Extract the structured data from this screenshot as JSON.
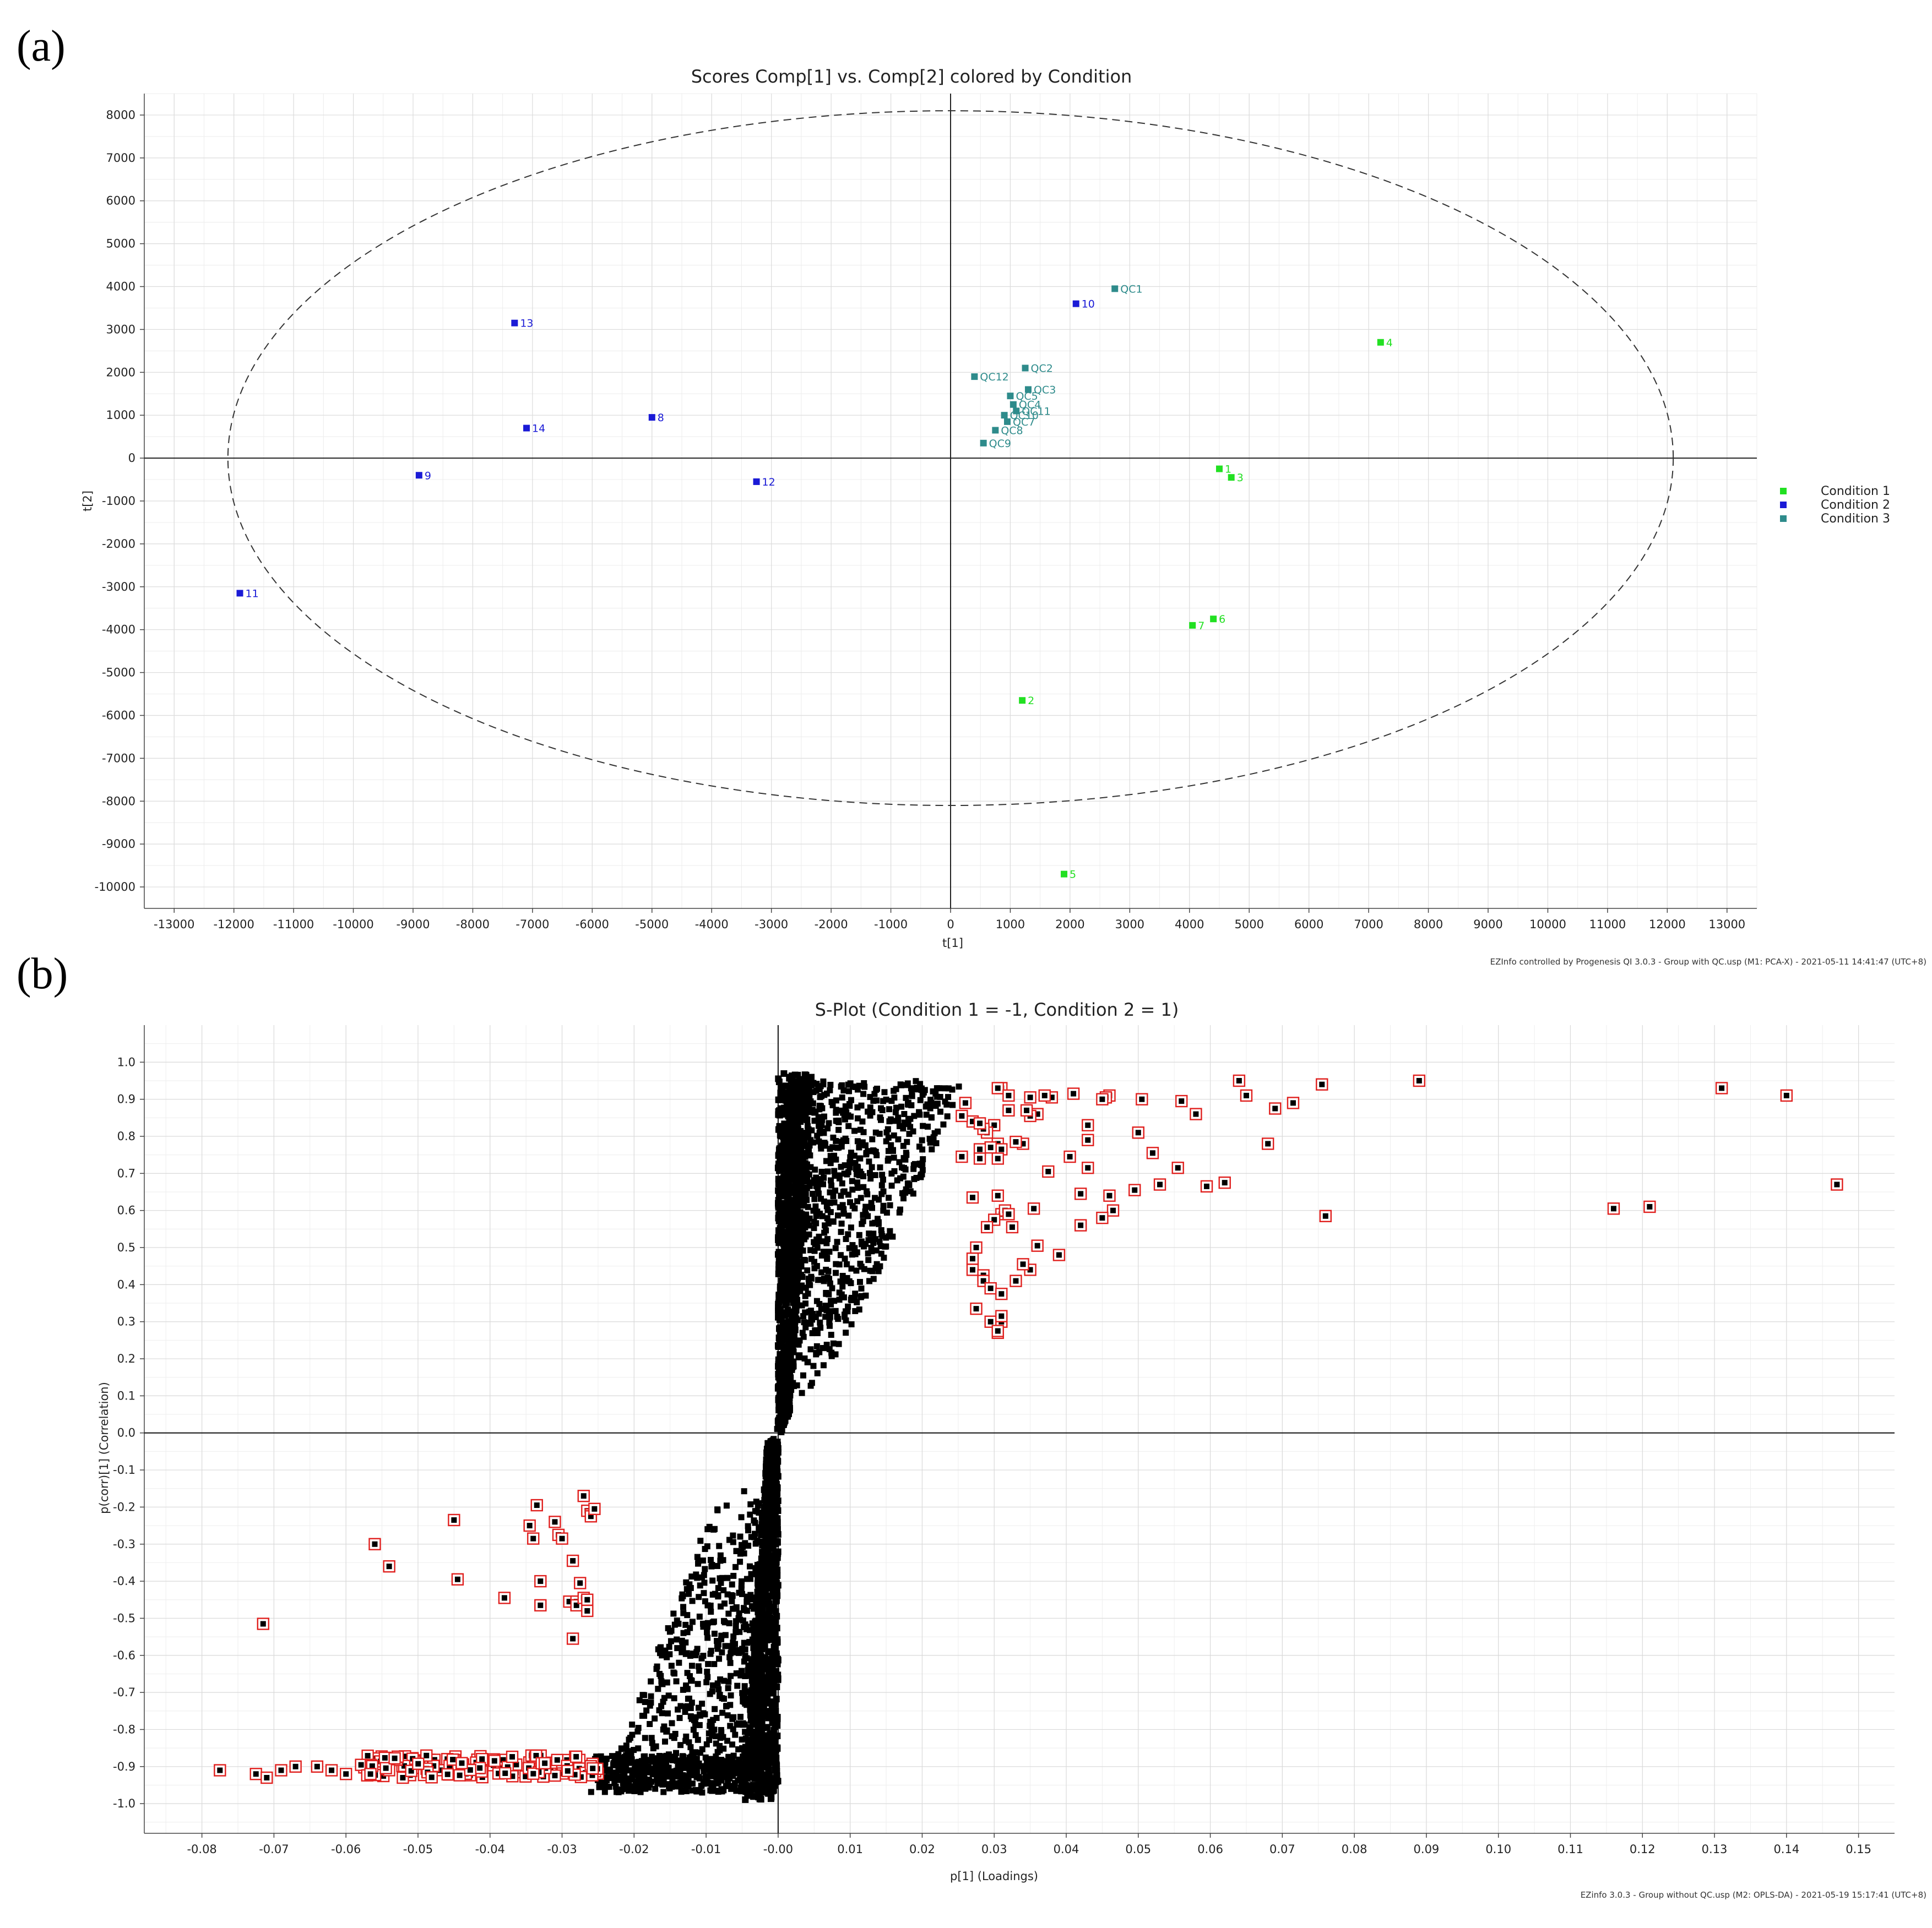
{
  "panel_a_label": "(a)",
  "panel_b_label": "(b)",
  "chart_data": [
    {
      "type": "scatter",
      "title": "Scores Comp[1] vs. Comp[2] colored by Condition",
      "xlabel": "t[1]",
      "ylabel": "t[2]",
      "xlim": [
        -13500,
        13500
      ],
      "ylim": [
        -10500,
        8500
      ],
      "xticks": [
        -13000,
        -12000,
        -11000,
        -10000,
        -9000,
        -8000,
        -7000,
        -6000,
        -5000,
        -4000,
        -3000,
        -2000,
        -1000,
        0,
        1000,
        2000,
        3000,
        4000,
        5000,
        6000,
        7000,
        8000,
        9000,
        10000,
        11000,
        12000,
        13000
      ],
      "yticks": [
        8000,
        7000,
        6000,
        5000,
        4000,
        3000,
        2000,
        1000,
        0,
        -1000,
        -2000,
        -3000,
        -4000,
        -5000,
        -6000,
        -7000,
        -8000,
        -9000,
        -10000
      ],
      "ellipse": {
        "cx": 0,
        "cy": 0,
        "rx": 12100,
        "ry": 8100
      },
      "legend": [
        {
          "label": "Condition 1",
          "color": "#22e022"
        },
        {
          "label": "Condition 2",
          "color": "#1a1ad6"
        },
        {
          "label": "Condition 3",
          "color": "#2e8b8b"
        }
      ],
      "points": [
        {
          "label": "1",
          "x": 4500,
          "y": -250,
          "condition": 1
        },
        {
          "label": "2",
          "x": 1200,
          "y": -5650,
          "condition": 1
        },
        {
          "label": "3",
          "x": 4700,
          "y": -450,
          "condition": 1
        },
        {
          "label": "4",
          "x": 7200,
          "y": 2700,
          "condition": 1
        },
        {
          "label": "5",
          "x": 1900,
          "y": -9700,
          "condition": 1
        },
        {
          "label": "6",
          "x": 4400,
          "y": -3750,
          "condition": 1
        },
        {
          "label": "7",
          "x": 4050,
          "y": -3900,
          "condition": 1
        },
        {
          "label": "8",
          "x": -5000,
          "y": 950,
          "condition": 2
        },
        {
          "label": "9",
          "x": -8900,
          "y": -400,
          "condition": 2
        },
        {
          "label": "10",
          "x": 2100,
          "y": 3600,
          "condition": 2
        },
        {
          "label": "11",
          "x": -11900,
          "y": -3150,
          "condition": 2
        },
        {
          "label": "12",
          "x": -3250,
          "y": -550,
          "condition": 2
        },
        {
          "label": "13",
          "x": -7300,
          "y": 3150,
          "condition": 2
        },
        {
          "label": "14",
          "x": -7100,
          "y": 700,
          "condition": 2
        },
        {
          "label": "QC1",
          "x": 2750,
          "y": 3950,
          "condition": 3
        },
        {
          "label": "QC2",
          "x": 1250,
          "y": 2100,
          "condition": 3
        },
        {
          "label": "QC3",
          "x": 1300,
          "y": 1600,
          "condition": 3
        },
        {
          "label": "QC12",
          "x": 400,
          "y": 1900,
          "condition": 3
        },
        {
          "label": "QC5",
          "x": 1000,
          "y": 1450,
          "condition": 3
        },
        {
          "label": "QC4",
          "x": 1050,
          "y": 1250,
          "condition": 3
        },
        {
          "label": "QC11",
          "x": 1100,
          "y": 1100,
          "condition": 3
        },
        {
          "label": "QC10",
          "x": 900,
          "y": 1000,
          "condition": 3
        },
        {
          "label": "QC7",
          "x": 950,
          "y": 850,
          "condition": 3
        },
        {
          "label": "QC8",
          "x": 750,
          "y": 650,
          "condition": 3
        },
        {
          "label": "QC9",
          "x": 550,
          "y": 350,
          "condition": 3
        }
      ],
      "footer": "EZInfo controlled by Progenesis QI 3.0.3 - Group with QC.usp (M1: PCA-X) - 2021-05-11 14:41:47 (UTC+8)"
    },
    {
      "type": "scatter",
      "title": "S-Plot (Condition 1 = -1, Condition 2 = 1)",
      "xlabel": "p[1] (Loadings)",
      "ylabel": "p(corr)[1] (Correlation)",
      "xlim": [
        -0.088,
        0.155
      ],
      "ylim": [
        -1.08,
        1.1
      ],
      "xticks": [
        -0.08,
        -0.07,
        -0.06,
        -0.05,
        -0.04,
        -0.03,
        -0.02,
        -0.01,
        0,
        0.01,
        0.02,
        0.03,
        0.04,
        0.05,
        0.06,
        0.07,
        0.08,
        0.09,
        0.1,
        0.11,
        0.12,
        0.13,
        0.14,
        0.15
      ],
      "xtick_labels": [
        "-0.08",
        "-0.07",
        "-0.06",
        "-0.05",
        "-0.04",
        "-0.03",
        "-0.02",
        "-0.01",
        "-0.00",
        "0.01",
        "0.02",
        "0.03",
        "0.04",
        "0.05",
        "0.06",
        "0.07",
        "0.08",
        "0.09",
        "0.10",
        "0.11",
        "0.12",
        "0.13",
        "0.14",
        "0.15"
      ],
      "yticks": [
        1,
        0.9,
        0.8,
        0.7,
        0.6,
        0.5,
        0.4,
        0.3,
        0.2,
        0.1,
        0,
        -0.1,
        -0.2,
        -0.3,
        -0.4,
        -0.5,
        -0.6,
        -0.7,
        -0.8,
        -0.9,
        -1
      ],
      "ytick_labels": [
        "1.0",
        "0.9",
        "0.8",
        "0.7",
        "0.6",
        "0.5",
        "0.4",
        "0.3",
        "0.2",
        "0.1",
        "0.0",
        "-0.1",
        "-0.2",
        "-0.3",
        "-0.4",
        "-0.5",
        "-0.6",
        "-0.7",
        "-0.8",
        "-0.9",
        "-1.0"
      ],
      "highlighted_positive": [
        [
          0.147,
          0.67
        ],
        [
          0.14,
          0.91
        ],
        [
          0.131,
          0.93
        ],
        [
          0.121,
          0.61
        ],
        [
          0.116,
          0.605
        ],
        [
          0.089,
          0.95
        ],
        [
          0.0755,
          0.94
        ],
        [
          0.076,
          0.585
        ],
        [
          0.0715,
          0.89
        ],
        [
          0.069,
          0.875
        ],
        [
          0.068,
          0.78
        ],
        [
          0.065,
          0.91
        ],
        [
          0.064,
          0.95
        ],
        [
          0.062,
          0.675
        ],
        [
          0.0595,
          0.665
        ],
        [
          0.058,
          0.86
        ],
        [
          0.056,
          0.895
        ],
        [
          0.0555,
          0.715
        ],
        [
          0.053,
          0.67
        ],
        [
          0.052,
          0.755
        ],
        [
          0.05,
          0.81
        ],
        [
          0.0505,
          0.9
        ],
        [
          0.0495,
          0.655
        ],
        [
          0.046,
          0.91
        ],
        [
          0.0455,
          0.905
        ],
        [
          0.045,
          0.9
        ],
        [
          0.046,
          0.64
        ],
        [
          0.0465,
          0.6
        ],
        [
          0.045,
          0.58
        ],
        [
          0.043,
          0.83
        ],
        [
          0.043,
          0.79
        ],
        [
          0.042,
          0.645
        ],
        [
          0.043,
          0.715
        ],
        [
          0.042,
          0.56
        ],
        [
          0.041,
          0.915
        ],
        [
          0.0405,
          0.745
        ],
        [
          0.039,
          0.48
        ],
        [
          0.038,
          0.905
        ],
        [
          0.037,
          0.91
        ],
        [
          0.036,
          0.86
        ],
        [
          0.035,
          0.855
        ],
        [
          0.035,
          0.905
        ],
        [
          0.0345,
          0.87
        ],
        [
          0.034,
          0.78
        ],
        [
          0.033,
          0.785
        ],
        [
          0.0375,
          0.705
        ],
        [
          0.0355,
          0.605
        ],
        [
          0.036,
          0.505
        ],
        [
          0.035,
          0.44
        ],
        [
          0.034,
          0.455
        ],
        [
          0.033,
          0.41
        ],
        [
          0.031,
          0.93
        ],
        [
          0.0305,
          0.93
        ],
        [
          0.032,
          0.91
        ],
        [
          0.032,
          0.87
        ],
        [
          0.03,
          0.83
        ],
        [
          0.029,
          0.81
        ],
        [
          0.027,
          0.84
        ],
        [
          0.0285,
          0.82
        ],
        [
          0.028,
          0.835
        ],
        [
          0.0305,
          0.78
        ],
        [
          0.031,
          0.765
        ],
        [
          0.0295,
          0.77
        ],
        [
          0.028,
          0.765
        ],
        [
          0.026,
          0.89
        ],
        [
          0.0255,
          0.855
        ],
        [
          0.0255,
          0.745
        ],
        [
          0.028,
          0.74
        ],
        [
          0.0305,
          0.74
        ],
        [
          0.0305,
          0.64
        ],
        [
          0.027,
          0.635
        ],
        [
          0.031,
          0.59
        ],
        [
          0.0315,
          0.6
        ],
        [
          0.032,
          0.59
        ],
        [
          0.03,
          0.575
        ],
        [
          0.0325,
          0.555
        ],
        [
          0.029,
          0.555
        ],
        [
          0.0275,
          0.5
        ],
        [
          0.027,
          0.47
        ],
        [
          0.027,
          0.44
        ],
        [
          0.0285,
          0.425
        ],
        [
          0.0285,
          0.41
        ],
        [
          0.0295,
          0.39
        ],
        [
          0.031,
          0.375
        ],
        [
          0.0275,
          0.335
        ],
        [
          0.0295,
          0.3
        ],
        [
          0.031,
          0.3
        ],
        [
          0.031,
          0.315
        ],
        [
          0.0305,
          0.27
        ],
        [
          0.0305,
          0.275
        ]
      ],
      "highlighted_negative": [
        [
          -0.0715,
          -0.515
        ],
        [
          -0.056,
          -0.3
        ],
        [
          -0.054,
          -0.36
        ],
        [
          -0.045,
          -0.235
        ],
        [
          -0.0445,
          -0.395
        ],
        [
          -0.038,
          -0.445
        ],
        [
          -0.0345,
          -0.25
        ],
        [
          -0.034,
          -0.285
        ],
        [
          -0.0335,
          -0.195
        ],
        [
          -0.033,
          -0.4
        ],
        [
          -0.033,
          -0.465
        ],
        [
          -0.031,
          -0.24
        ],
        [
          -0.0305,
          -0.275
        ],
        [
          -0.03,
          -0.285
        ],
        [
          -0.029,
          -0.455
        ],
        [
          -0.0285,
          -0.345
        ],
        [
          -0.0285,
          -0.555
        ],
        [
          -0.028,
          -0.455
        ],
        [
          -0.028,
          -0.465
        ],
        [
          -0.0275,
          -0.405
        ],
        [
          -0.027,
          -0.17
        ],
        [
          -0.027,
          -0.445
        ],
        [
          -0.0265,
          -0.21
        ],
        [
          -0.0265,
          -0.45
        ],
        [
          -0.026,
          -0.22
        ],
        [
          -0.0265,
          -0.48
        ],
        [
          -0.026,
          -0.225
        ],
        [
          -0.0255,
          -0.205
        ],
        [
          -0.0775,
          -0.91
        ],
        [
          -0.0725,
          -0.92
        ],
        [
          -0.071,
          -0.93
        ],
        [
          -0.069,
          -0.91
        ],
        [
          -0.067,
          -0.9
        ],
        [
          -0.064,
          -0.9
        ],
        [
          -0.062,
          -0.91
        ],
        [
          -0.06,
          -0.92
        ]
      ],
      "footer": "EZinfo 3.0.3 - Group without QC.usp (M2: OPLS-DA) - 2021-05-19 15:17:41 (UTC+8)"
    }
  ]
}
